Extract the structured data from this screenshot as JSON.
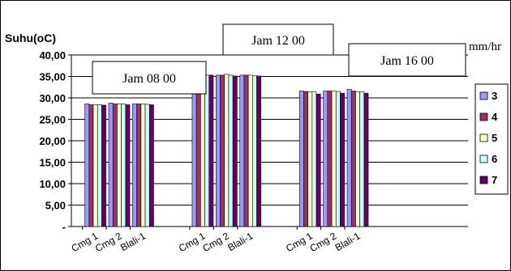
{
  "chart_data": {
    "type": "bar",
    "ylabel": "Suhu(oC)",
    "unit_label": "mm/hr",
    "ylim": [
      0,
      40
    ],
    "yticks": [
      "-",
      "5,00",
      "10,00",
      "15,00",
      "20,00",
      "25,00",
      "30,00",
      "35,00",
      "40,00"
    ],
    "ytick_values": [
      0,
      5,
      10,
      15,
      20,
      25,
      30,
      35,
      40
    ],
    "grid": true,
    "legend_position": "right",
    "groups": [
      {
        "annotation": "Jam 08 00",
        "categories": [
          "Cmg 1",
          "Cmg 2",
          "Blali-1"
        ]
      },
      {
        "annotation": "Jam 12 00",
        "categories": [
          "Cmg 1",
          "Cmg 2",
          "Blali-1"
        ]
      },
      {
        "annotation": "Jam 16 00",
        "categories": [
          "Cmg 1",
          "Cmg 2",
          "Blali-1"
        ]
      }
    ],
    "series": [
      {
        "name": "3",
        "color": "#9999ff",
        "values": [
          28.6,
          28.8,
          28.6,
          35.3,
          35.3,
          35.3,
          31.6,
          31.6,
          32.0
        ]
      },
      {
        "name": "4",
        "color": "#993366",
        "values": [
          28.4,
          28.6,
          28.6,
          35.3,
          35.3,
          35.3,
          31.5,
          31.6,
          31.6
        ]
      },
      {
        "name": "5",
        "color": "#ffffcc",
        "values": [
          28.4,
          28.6,
          28.6,
          35.3,
          35.5,
          35.3,
          31.4,
          31.6,
          31.4
        ]
      },
      {
        "name": "6",
        "color": "#ccffff",
        "values": [
          28.4,
          28.6,
          28.5,
          35.3,
          35.3,
          35.2,
          31.4,
          31.5,
          31.4
        ]
      },
      {
        "name": "7",
        "color": "#660066",
        "values": [
          28.3,
          28.4,
          28.4,
          35.3,
          35.1,
          35.1,
          30.9,
          31.1,
          31.1
        ]
      }
    ]
  }
}
